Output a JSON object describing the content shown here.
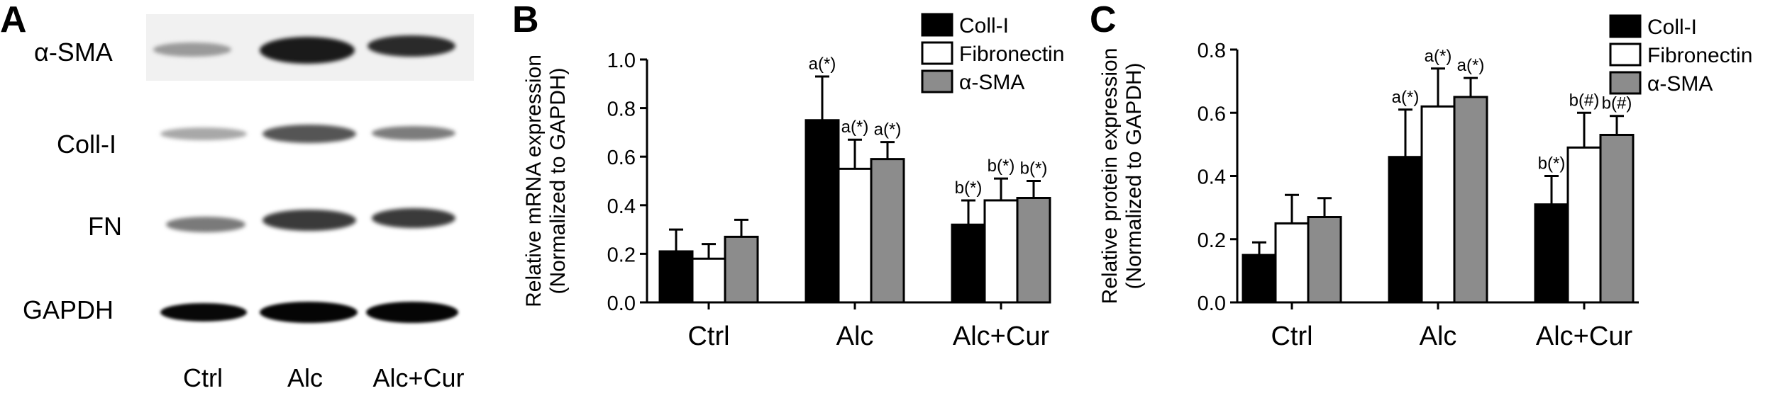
{
  "panel_a": {
    "letter": "A",
    "rows": [
      "α-SMA",
      "Coll-I",
      "FN",
      "GAPDH"
    ],
    "lanes": [
      "Ctrl",
      "Alc",
      "Alc+Cur"
    ]
  },
  "colors": {
    "coll": "#000000",
    "fibronectin": "#ffffff",
    "asma": "#8c8c8c"
  },
  "chart_data": [
    {
      "panel": "B",
      "type": "bar",
      "ylabel": [
        "Relative mRNA expression",
        "(Normalized to GAPDH)"
      ],
      "ylim": [
        0,
        1.0
      ],
      "yticks": [
        "0.0",
        "0.2",
        "0.4",
        "0.6",
        "0.8",
        "1.0"
      ],
      "categories": [
        "Ctrl",
        "Alc",
        "Alc+Cur"
      ],
      "series": [
        {
          "name": "Coll-I",
          "values": [
            0.21,
            0.75,
            0.32
          ],
          "errors": [
            0.09,
            0.18,
            0.1
          ],
          "annotations": [
            "",
            "a(*)",
            "b(*)"
          ]
        },
        {
          "name": "Fibronectin",
          "values": [
            0.18,
            0.55,
            0.42
          ],
          "errors": [
            0.06,
            0.12,
            0.09
          ],
          "annotations": [
            "",
            "a(*)",
            "b(*)"
          ]
        },
        {
          "name": "α-SMA",
          "values": [
            0.27,
            0.59,
            0.43
          ],
          "errors": [
            0.07,
            0.07,
            0.07
          ],
          "annotations": [
            "",
            "a(*)",
            "b(*)"
          ]
        }
      ]
    },
    {
      "panel": "C",
      "type": "bar",
      "ylabel": [
        "Relative protein expression",
        "(Normalized to GAPDH)"
      ],
      "ylim": [
        0,
        0.8
      ],
      "yticks": [
        "0.0",
        "0.2",
        "0.4",
        "0.6",
        "0.8"
      ],
      "categories": [
        "Ctrl",
        "Alc",
        "Alc+Cur"
      ],
      "series": [
        {
          "name": "Coll-I",
          "values": [
            0.15,
            0.46,
            0.31
          ],
          "errors": [
            0.04,
            0.15,
            0.09
          ],
          "annotations": [
            "",
            "a(*)",
            "b(*)"
          ]
        },
        {
          "name": "Fibronectin",
          "values": [
            0.25,
            0.62,
            0.49
          ],
          "errors": [
            0.09,
            0.12,
            0.11
          ],
          "annotations": [
            "",
            "a(*)",
            "b(#)"
          ]
        },
        {
          "name": "α-SMA",
          "values": [
            0.27,
            0.65,
            0.53
          ],
          "errors": [
            0.06,
            0.06,
            0.06
          ],
          "annotations": [
            "",
            "a(*)",
            "b(#)"
          ]
        }
      ]
    }
  ]
}
